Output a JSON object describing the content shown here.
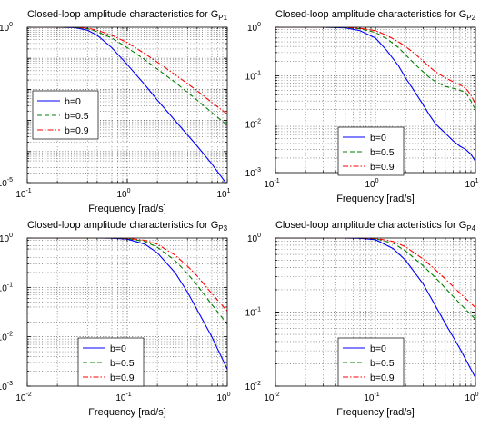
{
  "chart_data": [
    {
      "type": "line",
      "title": "Closed-loop amplitude characteristics for G",
      "title_subscript": "P1",
      "xlabel": "Frequency [rad/s]",
      "ylabel": "",
      "xscale": "log",
      "yscale": "log",
      "xlim": [
        0.1,
        10
      ],
      "ylim": [
        1e-05,
        1
      ],
      "xticks": [
        {
          "base": "10",
          "exp": "-1",
          "v": 0.1
        },
        {
          "base": "10",
          "exp": "0",
          "v": 1
        },
        {
          "base": "10",
          "exp": "1",
          "v": 10
        }
      ],
      "yticks": [
        {
          "base": "10",
          "exp": "-5",
          "v": 1e-05
        },
        {
          "base": "10",
          "exp": "0",
          "v": 1
        }
      ],
      "grid": true,
      "legend": "middle-left",
      "series": [
        {
          "name": "b=0",
          "color": "#0000ff",
          "dash": "solid",
          "x": [
            0.1,
            0.2,
            0.3,
            0.4,
            0.5,
            0.7,
            1,
            1.5,
            2,
            3,
            5,
            7,
            10
          ],
          "y": [
            1,
            1,
            0.97,
            0.8,
            0.55,
            0.22,
            0.063,
            0.014,
            0.0045,
            0.001,
            0.00015,
            4e-05,
            8.5e-06
          ]
        },
        {
          "name": "b=0.5",
          "color": "#008000",
          "dash": "dash",
          "x": [
            0.1,
            0.2,
            0.3,
            0.4,
            0.5,
            0.7,
            1,
            1.5,
            2,
            3,
            5,
            7,
            10
          ],
          "y": [
            1,
            1,
            0.99,
            0.9,
            0.72,
            0.45,
            0.22,
            0.09,
            0.045,
            0.017,
            0.0045,
            0.0018,
            0.0007
          ]
        },
        {
          "name": "b=0.9",
          "color": "#ff0000",
          "dash": "dashdot",
          "x": [
            0.1,
            0.2,
            0.3,
            0.4,
            0.5,
            0.7,
            1,
            1.5,
            2,
            3,
            5,
            7,
            10
          ],
          "y": [
            1,
            1,
            1,
            0.93,
            0.8,
            0.55,
            0.32,
            0.14,
            0.075,
            0.03,
            0.009,
            0.0038,
            0.0016
          ]
        }
      ]
    },
    {
      "type": "line",
      "title": "Closed-loop amplitude characteristics for G",
      "title_subscript": "P2",
      "xlabel": "Frequency [rad/s]",
      "ylabel": "",
      "xscale": "log",
      "yscale": "log",
      "xlim": [
        0.1,
        10
      ],
      "ylim": [
        0.001,
        1
      ],
      "xticks": [
        {
          "base": "10",
          "exp": "-1",
          "v": 0.1
        },
        {
          "base": "10",
          "exp": "0",
          "v": 1
        },
        {
          "base": "10",
          "exp": "1",
          "v": 10
        }
      ],
      "yticks": [
        {
          "base": "10",
          "exp": "-3",
          "v": 0.001
        },
        {
          "base": "10",
          "exp": "-2",
          "v": 0.01
        },
        {
          "base": "10",
          "exp": "-1",
          "v": 0.1
        },
        {
          "base": "10",
          "exp": "0",
          "v": 1
        }
      ],
      "grid": true,
      "legend": "bottom-middle",
      "series": [
        {
          "name": "b=0",
          "color": "#0000ff",
          "dash": "solid",
          "x": [
            0.1,
            0.3,
            0.5,
            0.7,
            1,
            1.3,
            1.7,
            2,
            2.5,
            3,
            3.5,
            4,
            5,
            6,
            7,
            8,
            9,
            10
          ],
          "y": [
            1,
            1,
            0.97,
            0.85,
            0.6,
            0.33,
            0.16,
            0.09,
            0.045,
            0.025,
            0.015,
            0.01,
            0.0065,
            0.0045,
            0.0035,
            0.003,
            0.0024,
            0.0017
          ]
        },
        {
          "name": "b=0.5",
          "color": "#008000",
          "dash": "dash",
          "x": [
            0.1,
            0.3,
            0.5,
            0.7,
            1,
            1.3,
            1.7,
            2,
            2.5,
            3,
            3.5,
            4,
            5,
            6,
            7,
            8,
            9,
            10
          ],
          "y": [
            1,
            1,
            0.99,
            0.93,
            0.78,
            0.58,
            0.38,
            0.27,
            0.17,
            0.12,
            0.09,
            0.075,
            0.06,
            0.055,
            0.05,
            0.045,
            0.03,
            0.02
          ]
        },
        {
          "name": "b=0.9",
          "color": "#ff0000",
          "dash": "dashdot",
          "x": [
            0.1,
            0.3,
            0.5,
            0.7,
            1,
            1.3,
            1.7,
            2,
            2.5,
            3,
            3.5,
            4,
            5,
            6,
            7,
            8,
            9,
            10
          ],
          "y": [
            1,
            1,
            1,
            0.95,
            0.85,
            0.68,
            0.5,
            0.4,
            0.28,
            0.2,
            0.15,
            0.12,
            0.09,
            0.075,
            0.065,
            0.055,
            0.04,
            0.026
          ]
        }
      ]
    },
    {
      "type": "line",
      "title": "Closed-loop amplitude characteristics for G",
      "title_subscript": "P3",
      "xlabel": "Frequency [rad/s]",
      "ylabel": "",
      "xscale": "log",
      "yscale": "log",
      "xlim": [
        0.01,
        1
      ],
      "ylim": [
        0.001,
        1
      ],
      "xticks": [
        {
          "base": "10",
          "exp": "-2",
          "v": 0.01
        },
        {
          "base": "10",
          "exp": "-1",
          "v": 0.1
        },
        {
          "base": "10",
          "exp": "0",
          "v": 1
        }
      ],
      "yticks": [
        {
          "base": "10",
          "exp": "-3",
          "v": 0.001
        },
        {
          "base": "10",
          "exp": "-2",
          "v": 0.01
        },
        {
          "base": "10",
          "exp": "-1",
          "v": 0.1
        },
        {
          "base": "10",
          "exp": "0",
          "v": 1
        }
      ],
      "grid": true,
      "legend": "bottom-middle",
      "series": [
        {
          "name": "b=0",
          "color": "#0000ff",
          "dash": "solid",
          "x": [
            0.01,
            0.03,
            0.05,
            0.07,
            0.1,
            0.15,
            0.2,
            0.3,
            0.4,
            0.5,
            0.7,
            1
          ],
          "y": [
            1,
            1,
            1,
            0.99,
            0.95,
            0.75,
            0.5,
            0.2,
            0.08,
            0.035,
            0.01,
            0.0022
          ]
        },
        {
          "name": "b=0.5",
          "color": "#008000",
          "dash": "dash",
          "x": [
            0.01,
            0.03,
            0.05,
            0.07,
            0.1,
            0.15,
            0.2,
            0.3,
            0.4,
            0.5,
            0.7,
            1
          ],
          "y": [
            1,
            1,
            1,
            1,
            0.98,
            0.85,
            0.65,
            0.35,
            0.19,
            0.11,
            0.045,
            0.018
          ]
        },
        {
          "name": "b=0.9",
          "color": "#ff0000",
          "dash": "dashdot",
          "x": [
            0.01,
            0.03,
            0.05,
            0.07,
            0.1,
            0.15,
            0.2,
            0.3,
            0.4,
            0.5,
            0.7,
            1
          ],
          "y": [
            1,
            1,
            1,
            1,
            0.99,
            0.9,
            0.75,
            0.45,
            0.27,
            0.17,
            0.075,
            0.033
          ]
        }
      ]
    },
    {
      "type": "line",
      "title": "Closed-loop amplitude characteristics for G",
      "title_subscript": "P4",
      "xlabel": "Frequency [rad/s]",
      "ylabel": "",
      "xscale": "log",
      "yscale": "log",
      "xlim": [
        0.01,
        1
      ],
      "ylim": [
        0.01,
        1
      ],
      "xticks": [
        {
          "base": "10",
          "exp": "-2",
          "v": 0.01
        },
        {
          "base": "10",
          "exp": "-1",
          "v": 0.1
        },
        {
          "base": "10",
          "exp": "0",
          "v": 1
        }
      ],
      "yticks": [
        {
          "base": "10",
          "exp": "-2",
          "v": 0.01
        },
        {
          "base": "10",
          "exp": "-1",
          "v": 0.1
        },
        {
          "base": "10",
          "exp": "0",
          "v": 1
        }
      ],
      "grid": true,
      "legend": "bottom-middle",
      "series": [
        {
          "name": "b=0",
          "color": "#0000ff",
          "dash": "solid",
          "x": [
            0.01,
            0.03,
            0.05,
            0.07,
            0.1,
            0.15,
            0.2,
            0.3,
            0.4,
            0.5,
            0.7,
            1
          ],
          "y": [
            1,
            1,
            1,
            0.99,
            0.95,
            0.72,
            0.5,
            0.24,
            0.12,
            0.07,
            0.032,
            0.013
          ]
        },
        {
          "name": "b=0.5",
          "color": "#008000",
          "dash": "dash",
          "x": [
            0.01,
            0.03,
            0.05,
            0.07,
            0.1,
            0.15,
            0.2,
            0.3,
            0.4,
            0.5,
            0.7,
            1
          ],
          "y": [
            1,
            1,
            1,
            1,
            0.98,
            0.85,
            0.67,
            0.42,
            0.29,
            0.21,
            0.13,
            0.08
          ]
        },
        {
          "name": "b=0.9",
          "color": "#ff0000",
          "dash": "dashdot",
          "x": [
            0.01,
            0.03,
            0.05,
            0.07,
            0.1,
            0.15,
            0.2,
            0.3,
            0.4,
            0.5,
            0.7,
            1
          ],
          "y": [
            1,
            1,
            1,
            1,
            0.99,
            0.9,
            0.76,
            0.52,
            0.37,
            0.28,
            0.18,
            0.115
          ]
        }
      ]
    }
  ]
}
